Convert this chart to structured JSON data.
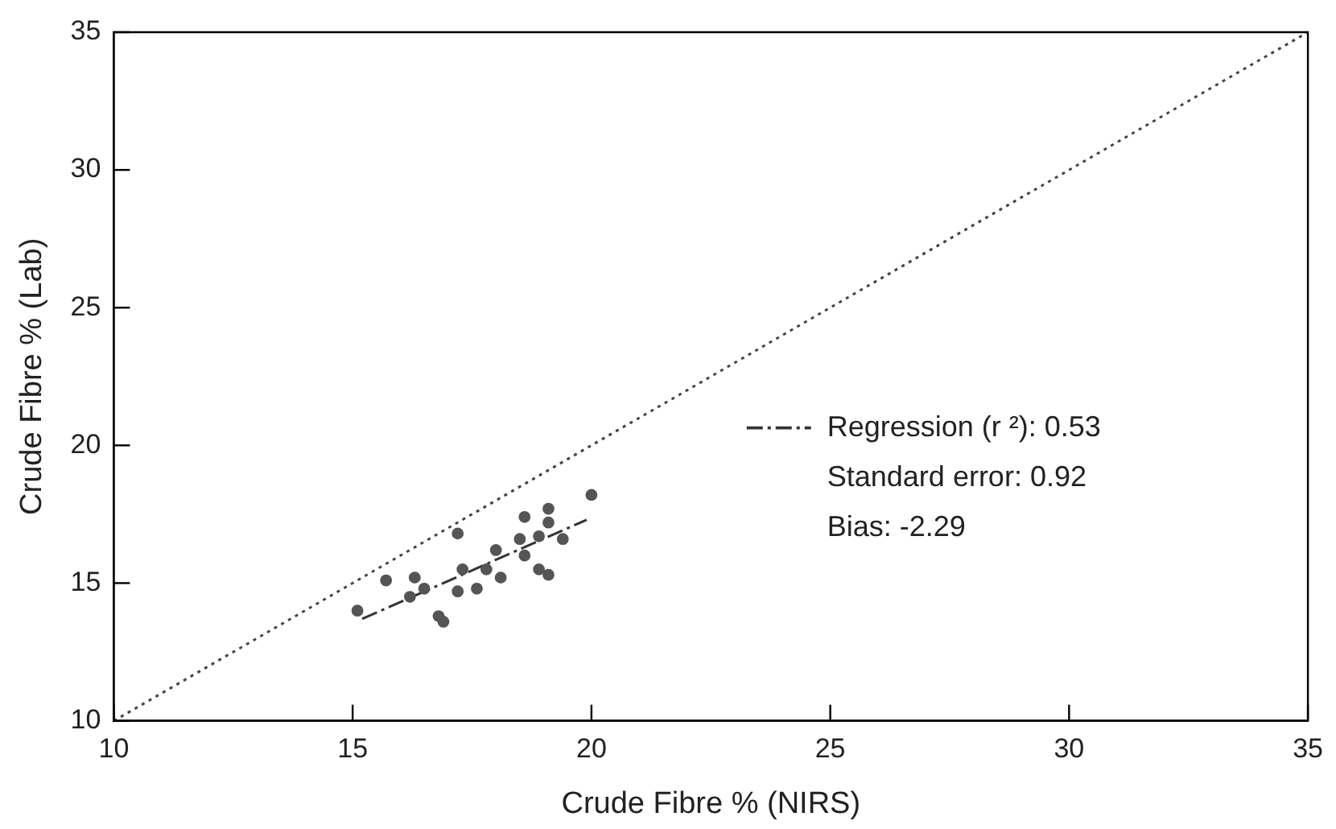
{
  "chart_data": {
    "type": "scatter",
    "xlabel": "Crude Fibre % (NIRS)",
    "ylabel": "Crude Fibre % (Lab)",
    "xlim": [
      10,
      35
    ],
    "xticks": [
      10,
      15,
      20,
      25,
      30,
      35
    ],
    "ylim": [
      10,
      35
    ],
    "yticks": [
      10,
      15,
      20,
      25,
      30,
      35
    ],
    "grid": false,
    "legend": "bottom right",
    "marker": "circle",
    "series": [
      {
        "color": "#555555",
        "x": [
          20.0,
          19.1,
          18.6,
          19.1,
          17.2,
          18.5,
          18.9,
          19.4,
          18.0,
          18.6,
          17.3,
          17.8,
          18.9,
          19.1,
          15.7,
          16.3,
          18.1,
          16.5,
          17.6,
          17.2,
          15.1,
          16.8,
          16.9,
          16.2
        ],
        "values": [
          18.2,
          17.7,
          17.4,
          17.2,
          16.8,
          16.6,
          16.7,
          16.6,
          16.2,
          16.0,
          15.5,
          15.5,
          15.5,
          15.3,
          15.1,
          15.2,
          15.2,
          14.8,
          14.8,
          14.7,
          14.0,
          13.8,
          13.6,
          14.5
        ]
      },
      {
        "type": "line",
        "name": "Regression (r ²): 0.53",
        "color": "#333333",
        "line_style": "dashed",
        "marker": "none",
        "x": [
          15.2,
          19.9
        ],
        "values": [
          13.7,
          17.3
        ]
      },
      {
        "type": "line",
        "color": "#444444",
        "line_style": "dotted",
        "marker": "none",
        "x": [
          10,
          35
        ],
        "values": [
          10,
          35
        ]
      }
    ],
    "annotations": [
      "Standard error: 0.92",
      "Bias: -2.29"
    ]
  }
}
